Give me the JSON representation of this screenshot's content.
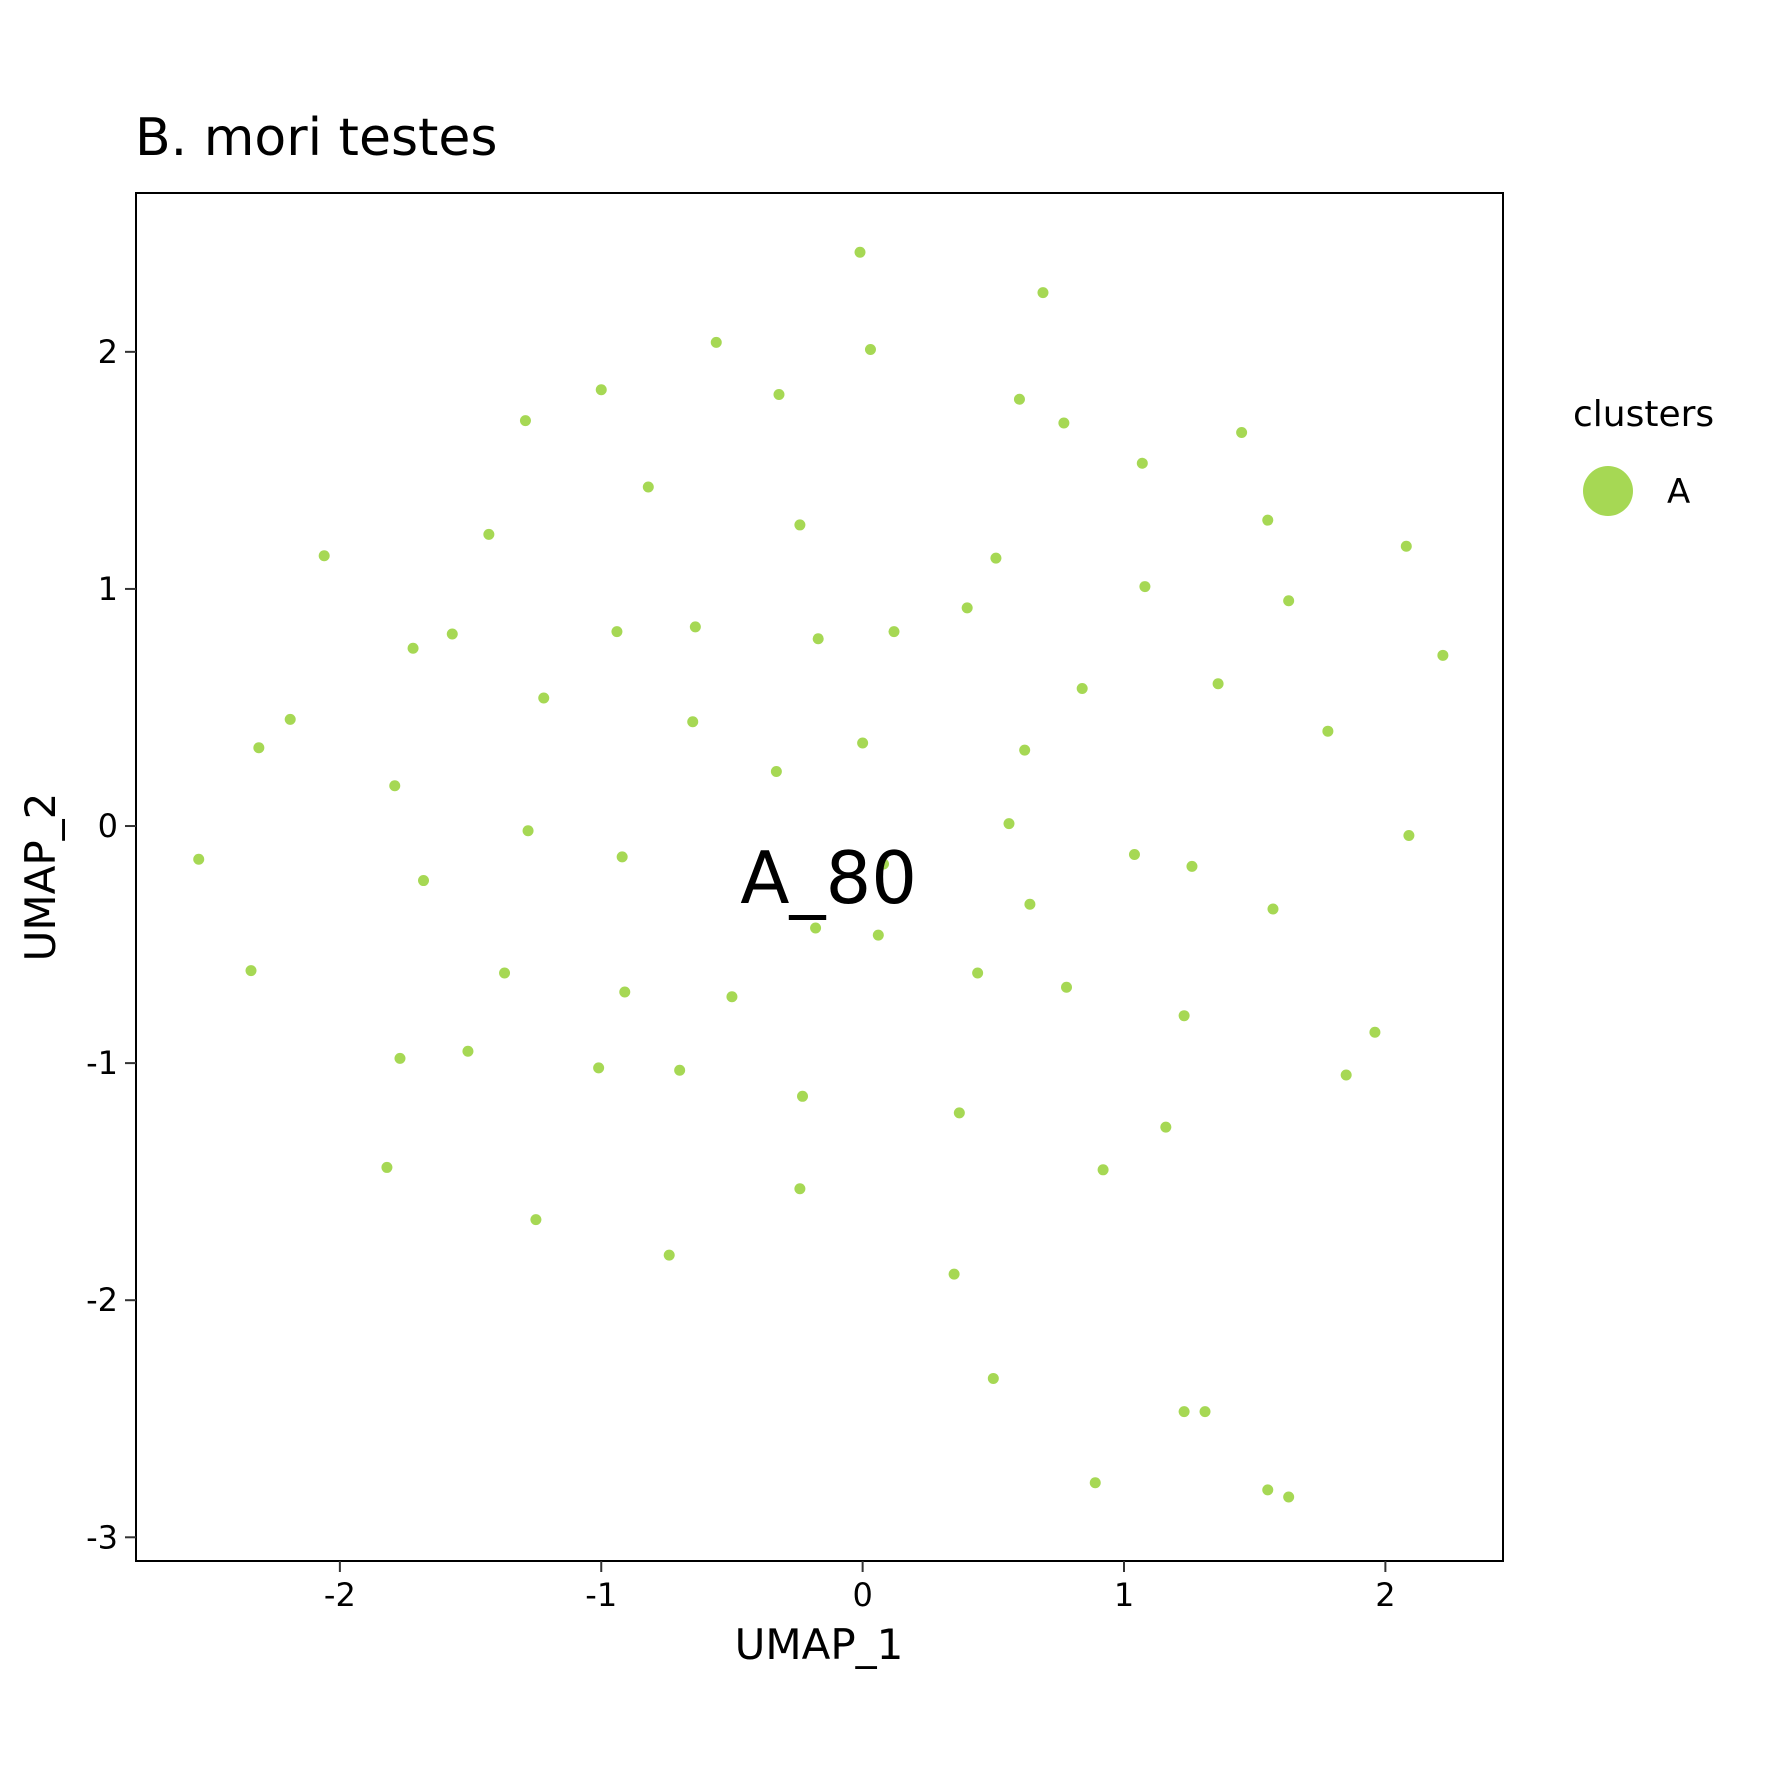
{
  "chart_data": {
    "type": "scatter",
    "title": "B. mori testes",
    "xlabel": "UMAP_1",
    "ylabel": "UMAP_2",
    "xlim": [
      -2.78,
      2.45
    ],
    "ylim": [
      -3.1,
      2.67
    ],
    "xticks": [
      -2,
      -1,
      0,
      1,
      2
    ],
    "yticks": [
      -3,
      -2,
      -1,
      0,
      1,
      2
    ],
    "xtick_labels": [
      "-2",
      "-1",
      "0",
      "1",
      "2"
    ],
    "ytick_labels": [
      "-3",
      "-2",
      "-1",
      "0",
      "1",
      "2"
    ],
    "grid": false,
    "legend": {
      "title": "clusters",
      "position": "right",
      "entries": [
        {
          "label": "A",
          "color": "#a6d854"
        }
      ]
    },
    "annotation": {
      "text": "A_80",
      "x": -0.13,
      "y": -0.22
    },
    "series": [
      {
        "name": "A",
        "color": "#a6d854",
        "points": [
          [
            -0.01,
            2.42
          ],
          [
            0.69,
            2.25
          ],
          [
            -0.56,
            2.04
          ],
          [
            0.03,
            2.01
          ],
          [
            -1.0,
            1.84
          ],
          [
            -0.32,
            1.82
          ],
          [
            0.6,
            1.8
          ],
          [
            -1.29,
            1.71
          ],
          [
            0.77,
            1.7
          ],
          [
            1.45,
            1.66
          ],
          [
            1.07,
            1.53
          ],
          [
            -0.82,
            1.43
          ],
          [
            1.55,
            1.29
          ],
          [
            -0.24,
            1.27
          ],
          [
            -1.43,
            1.23
          ],
          [
            2.08,
            1.18
          ],
          [
            -2.06,
            1.14
          ],
          [
            0.51,
            1.13
          ],
          [
            1.08,
            1.01
          ],
          [
            1.63,
            0.95
          ],
          [
            0.4,
            0.92
          ],
          [
            -0.64,
            0.84
          ],
          [
            -0.94,
            0.82
          ],
          [
            0.12,
            0.82
          ],
          [
            -1.57,
            0.81
          ],
          [
            -0.17,
            0.79
          ],
          [
            -1.72,
            0.75
          ],
          [
            2.22,
            0.72
          ],
          [
            1.36,
            0.6
          ],
          [
            0.84,
            0.58
          ],
          [
            -1.22,
            0.54
          ],
          [
            -2.19,
            0.45
          ],
          [
            -0.65,
            0.44
          ],
          [
            1.78,
            0.4
          ],
          [
            0.0,
            0.35
          ],
          [
            -2.31,
            0.33
          ],
          [
            0.62,
            0.32
          ],
          [
            -0.33,
            0.23
          ],
          [
            -1.79,
            0.17
          ],
          [
            0.56,
            0.01
          ],
          [
            -1.28,
            -0.02
          ],
          [
            2.09,
            -0.04
          ],
          [
            1.04,
            -0.12
          ],
          [
            -0.92,
            -0.13
          ],
          [
            -2.54,
            -0.14
          ],
          [
            1.26,
            -0.17
          ],
          [
            0.08,
            -0.16
          ],
          [
            -1.68,
            -0.23
          ],
          [
            0.64,
            -0.33
          ],
          [
            1.57,
            -0.35
          ],
          [
            -0.18,
            -0.43
          ],
          [
            0.06,
            -0.46
          ],
          [
            -2.34,
            -0.61
          ],
          [
            -1.37,
            -0.62
          ],
          [
            0.44,
            -0.62
          ],
          [
            0.78,
            -0.68
          ],
          [
            -0.91,
            -0.7
          ],
          [
            -0.5,
            -0.72
          ],
          [
            1.23,
            -0.8
          ],
          [
            1.96,
            -0.87
          ],
          [
            -1.51,
            -0.95
          ],
          [
            -1.77,
            -0.98
          ],
          [
            -1.01,
            -1.02
          ],
          [
            -0.7,
            -1.03
          ],
          [
            1.85,
            -1.05
          ],
          [
            -0.23,
            -1.14
          ],
          [
            0.37,
            -1.21
          ],
          [
            1.16,
            -1.27
          ],
          [
            -1.82,
            -1.44
          ],
          [
            0.92,
            -1.45
          ],
          [
            -0.24,
            -1.53
          ],
          [
            -1.25,
            -1.66
          ],
          [
            -0.74,
            -1.81
          ],
          [
            0.35,
            -1.89
          ],
          [
            0.5,
            -2.33
          ],
          [
            1.23,
            -2.47
          ],
          [
            1.31,
            -2.47
          ],
          [
            0.89,
            -2.77
          ],
          [
            1.55,
            -2.8
          ],
          [
            1.63,
            -2.83
          ]
        ]
      }
    ]
  }
}
